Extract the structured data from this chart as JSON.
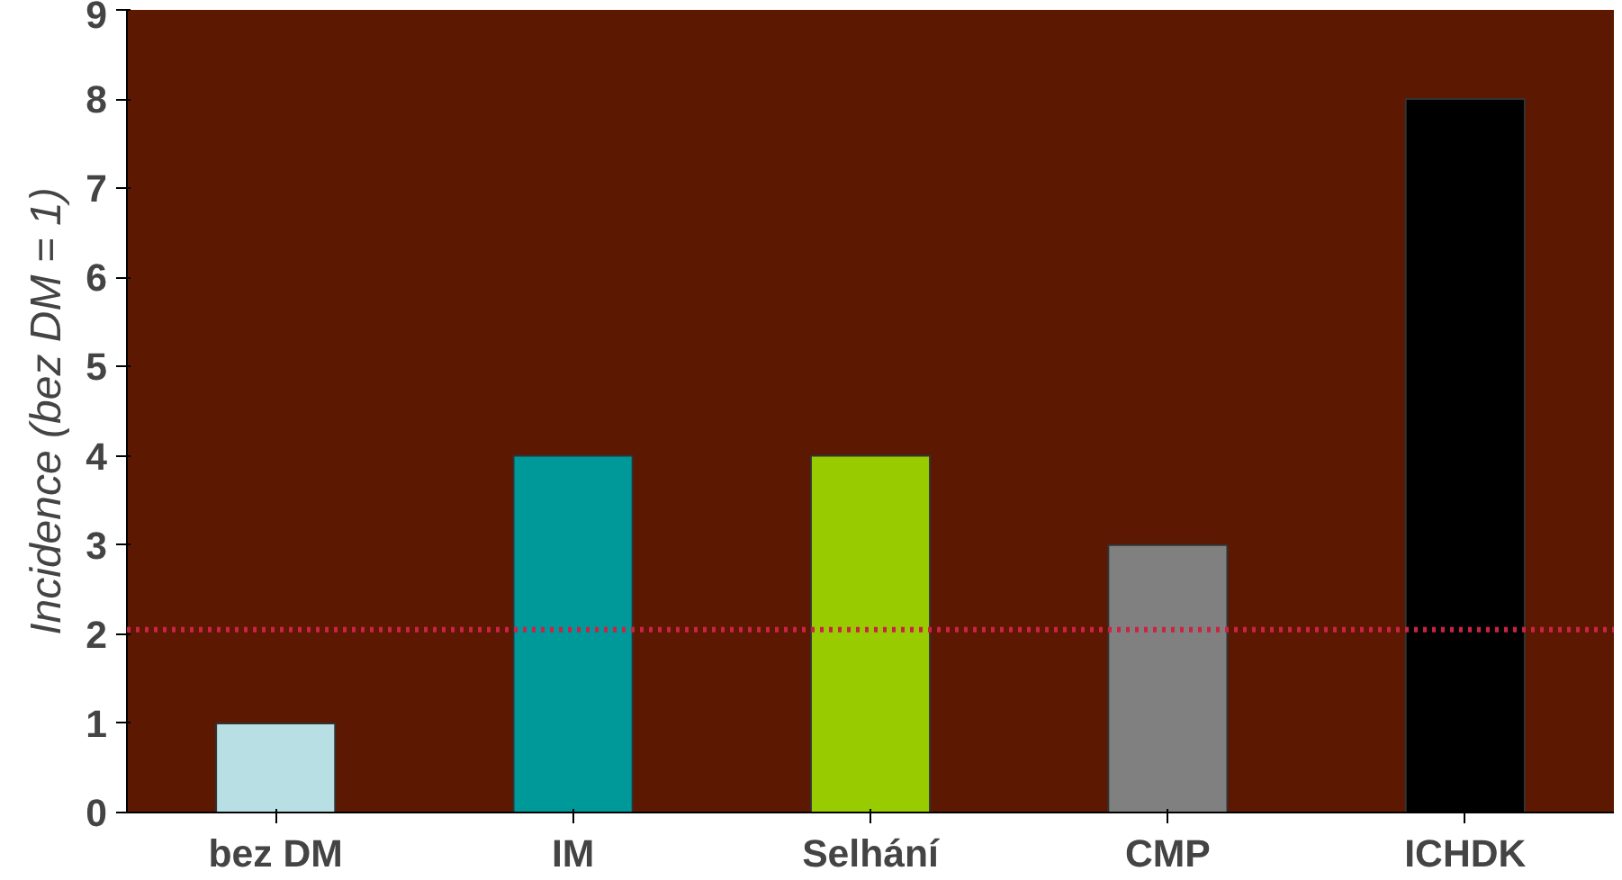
{
  "chart_data": {
    "type": "bar",
    "ylabel": "Incidence (bez DM = 1)",
    "categories": [
      "bez DM",
      "IM",
      "Selhání",
      "CMP",
      "ICHDK"
    ],
    "values": [
      1,
      4,
      4,
      3,
      8
    ],
    "colors": [
      "#b8e0e4",
      "#009999",
      "#99cc00",
      "#808080",
      "#000000"
    ],
    "ylim": [
      0,
      9
    ],
    "yticks": [
      0,
      1,
      2,
      3,
      4,
      5,
      6,
      7,
      8,
      9
    ],
    "grid": false,
    "ref_lines": [
      {
        "axis": "y",
        "value": 2.05,
        "color": "#cc2244",
        "line_style": "dotted"
      }
    ]
  }
}
